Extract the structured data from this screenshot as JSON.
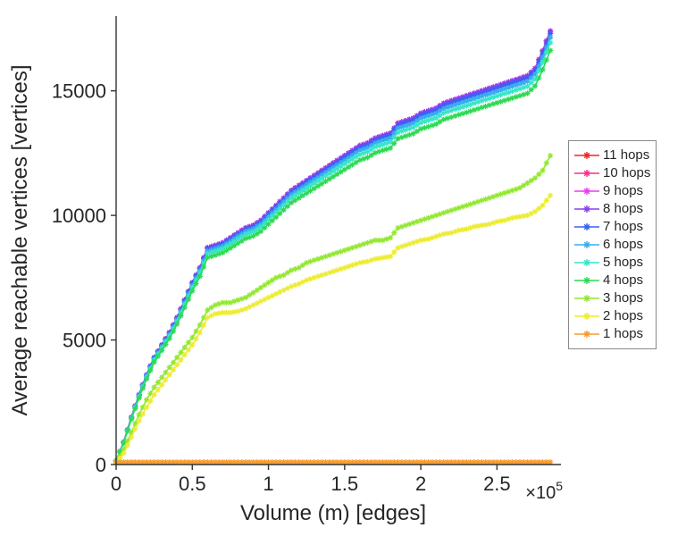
{
  "figure": {
    "background": "#ffffff",
    "axis_color": "#333333",
    "tick_label_color": "#262626"
  },
  "chart_data": {
    "type": "line",
    "title": "",
    "xlabel": "Volume (m) [edges]",
    "ylabel": "Average reachable vertices [vertices]",
    "x_axis_multiplier": {
      "base": "×10",
      "exponent": "5"
    },
    "x_unit_note": "x values are in units of 1e5 edges",
    "xlim": [
      0,
      2.92
    ],
    "ylim": [
      0,
      18000
    ],
    "xticks": [
      0,
      0.5,
      1,
      1.5,
      2,
      2.5
    ],
    "xtick_labels": [
      "0",
      "0.5",
      "1",
      "1.5",
      "2",
      "2.5"
    ],
    "yticks": [
      0,
      5000,
      10000,
      15000
    ],
    "ytick_labels": [
      "0",
      "5000",
      "10000",
      "15000"
    ],
    "grid": false,
    "marker": "asterisk",
    "legend_position": "right-outside",
    "x": [
      0.0,
      0.05,
      0.1,
      0.15,
      0.2,
      0.25,
      0.3,
      0.35,
      0.4,
      0.45,
      0.5,
      0.55,
      0.6,
      0.65,
      0.7,
      0.75,
      0.8,
      0.85,
      0.9,
      0.95,
      1.0,
      1.05,
      1.1,
      1.15,
      1.2,
      1.25,
      1.3,
      1.35,
      1.4,
      1.45,
      1.5,
      1.55,
      1.6,
      1.65,
      1.7,
      1.75,
      1.8,
      1.85,
      1.9,
      1.95,
      2.0,
      2.05,
      2.1,
      2.15,
      2.2,
      2.25,
      2.3,
      2.35,
      2.4,
      2.45,
      2.5,
      2.55,
      2.6,
      2.65,
      2.7,
      2.75,
      2.8,
      2.85
    ],
    "series": [
      {
        "name": "11 hops",
        "color": "#f0262d",
        "values": [
          150,
          900,
          1900,
          2800,
          3600,
          4300,
          4800,
          5300,
          5900,
          6600,
          7300,
          7900,
          8700,
          8800,
          8900,
          9100,
          9300,
          9500,
          9600,
          9800,
          10100,
          10400,
          10700,
          11000,
          11200,
          11400,
          11600,
          11800,
          12000,
          12200,
          12400,
          12600,
          12800,
          12900,
          13100,
          13200,
          13300,
          13700,
          13800,
          13900,
          14100,
          14200,
          14300,
          14500,
          14600,
          14700,
          14800,
          14900,
          15000,
          15100,
          15200,
          15300,
          15400,
          15500,
          15600,
          15900,
          16600,
          17400
        ]
      },
      {
        "name": "10 hops",
        "color": "#fb2e8c",
        "values": [
          150,
          900,
          1900,
          2800,
          3600,
          4300,
          4800,
          5300,
          5900,
          6600,
          7300,
          7900,
          8700,
          8800,
          8900,
          9100,
          9300,
          9500,
          9600,
          9800,
          10100,
          10400,
          10700,
          11000,
          11200,
          11400,
          11600,
          11800,
          12000,
          12200,
          12400,
          12600,
          12800,
          12900,
          13100,
          13200,
          13300,
          13700,
          13800,
          13900,
          14100,
          14200,
          14300,
          14500,
          14600,
          14700,
          14800,
          14900,
          15000,
          15100,
          15200,
          15300,
          15400,
          15500,
          15600,
          15900,
          16600,
          17400
        ]
      },
      {
        "name": "9 hops",
        "color": "#ee3cf0",
        "values": [
          150,
          900,
          1900,
          2800,
          3600,
          4300,
          4800,
          5300,
          5900,
          6600,
          7300,
          7900,
          8700,
          8800,
          8900,
          9100,
          9300,
          9500,
          9600,
          9800,
          10100,
          10400,
          10700,
          11000,
          11200,
          11400,
          11600,
          11800,
          12000,
          12200,
          12400,
          12600,
          12800,
          12900,
          13100,
          13200,
          13300,
          13700,
          13800,
          13900,
          14100,
          14200,
          14300,
          14500,
          14600,
          14700,
          14800,
          14900,
          15000,
          15100,
          15200,
          15300,
          15400,
          15500,
          15600,
          15900,
          16600,
          17400
        ]
      },
      {
        "name": "8 hops",
        "color": "#8c3ff0",
        "values": [
          150,
          900,
          1900,
          2800,
          3600,
          4300,
          4800,
          5300,
          5900,
          6600,
          7300,
          7900,
          8700,
          8800,
          8900,
          9100,
          9300,
          9500,
          9600,
          9800,
          10100,
          10400,
          10700,
          11000,
          11200,
          11400,
          11600,
          11800,
          12000,
          12200,
          12400,
          12600,
          12800,
          12900,
          13100,
          13200,
          13300,
          13700,
          13800,
          13900,
          14100,
          14200,
          14300,
          14500,
          14600,
          14700,
          14800,
          14900,
          15000,
          15100,
          15200,
          15300,
          15400,
          15500,
          15600,
          15900,
          16600,
          17400
        ]
      },
      {
        "name": "7 hops",
        "color": "#3a60f5",
        "values": [
          150,
          890,
          1890,
          2780,
          3580,
          4270,
          4770,
          5270,
          5860,
          6560,
          7260,
          7850,
          8650,
          8750,
          8850,
          9050,
          9240,
          9440,
          9540,
          9740,
          10040,
          10340,
          10640,
          10930,
          11130,
          11330,
          11530,
          11730,
          11930,
          12130,
          12330,
          12520,
          12720,
          12820,
          13020,
          13120,
          13220,
          13620,
          13720,
          13820,
          14020,
          14110,
          14210,
          14410,
          14510,
          14610,
          14710,
          14810,
          14910,
          15010,
          15110,
          15210,
          15310,
          15410,
          15510,
          15800,
          16500,
          17300
        ]
      },
      {
        "name": "6 hops",
        "color": "#38acf0",
        "values": [
          150,
          890,
          1870,
          2760,
          3550,
          4240,
          4730,
          5220,
          5810,
          6500,
          7190,
          7780,
          8570,
          8670,
          8770,
          8960,
          9160,
          9360,
          9460,
          9650,
          9950,
          10240,
          10540,
          10840,
          11030,
          11230,
          11430,
          11620,
          11820,
          12020,
          12210,
          12410,
          12610,
          12710,
          12900,
          13000,
          13100,
          13500,
          13590,
          13690,
          13890,
          13990,
          14090,
          14280,
          14380,
          14480,
          14580,
          14680,
          14780,
          14870,
          14970,
          15070,
          15170,
          15270,
          15370,
          15660,
          16350,
          17140
        ]
      },
      {
        "name": "5 hops",
        "color": "#35e6c8",
        "values": [
          150,
          880,
          1850,
          2720,
          3500,
          4180,
          4670,
          5160,
          5740,
          6420,
          7100,
          7690,
          8470,
          8560,
          8660,
          8850,
          9050,
          9240,
          9340,
          9540,
          9830,
          10120,
          10410,
          10700,
          10900,
          11090,
          11290,
          11480,
          11680,
          11870,
          12070,
          12260,
          12450,
          12550,
          12750,
          12840,
          12940,
          13330,
          13430,
          13530,
          13720,
          13820,
          13910,
          14110,
          14210,
          14300,
          14400,
          14500,
          14600,
          14690,
          14790,
          14890,
          14980,
          15080,
          15180,
          15470,
          16150,
          16930
        ]
      },
      {
        "name": "4 hops",
        "color": "#2ed955",
        "values": [
          140,
          860,
          1820,
          2670,
          3440,
          4110,
          4580,
          5060,
          5640,
          6300,
          6970,
          7550,
          8310,
          8400,
          8500,
          8690,
          8880,
          9070,
          9170,
          9360,
          9650,
          9930,
          10220,
          10510,
          10700,
          10890,
          11080,
          11270,
          11460,
          11650,
          11840,
          12030,
          12220,
          12320,
          12510,
          12610,
          12700,
          13080,
          13180,
          13280,
          13470,
          13560,
          13660,
          13850,
          13940,
          14040,
          14130,
          14230,
          14330,
          14420,
          14520,
          14610,
          14710,
          14800,
          14900,
          15190,
          15850,
          16620
        ]
      },
      {
        "name": "3 hops",
        "color": "#93e832",
        "values": [
          80,
          600,
          1300,
          2000,
          2600,
          3100,
          3500,
          3900,
          4300,
          4700,
          5100,
          5600,
          6200,
          6400,
          6500,
          6500,
          6600,
          6700,
          6900,
          7100,
          7300,
          7500,
          7600,
          7800,
          7900,
          8100,
          8200,
          8300,
          8400,
          8500,
          8600,
          8700,
          8800,
          8900,
          9000,
          9000,
          9100,
          9500,
          9600,
          9700,
          9800,
          9900,
          10000,
          10100,
          10200,
          10300,
          10400,
          10500,
          10600,
          10700,
          10800,
          10900,
          11000,
          11100,
          11300,
          11500,
          11800,
          12400
        ]
      },
      {
        "name": "2 hops",
        "color": "#ecec35",
        "values": [
          50,
          450,
          1100,
          1750,
          2300,
          2800,
          3200,
          3600,
          4000,
          4400,
          4800,
          5300,
          5900,
          6050,
          6100,
          6100,
          6150,
          6250,
          6400,
          6550,
          6700,
          6850,
          7000,
          7150,
          7250,
          7400,
          7500,
          7600,
          7700,
          7800,
          7900,
          8000,
          8100,
          8150,
          8250,
          8300,
          8350,
          8700,
          8800,
          8900,
          9000,
          9050,
          9150,
          9250,
          9300,
          9400,
          9450,
          9550,
          9600,
          9650,
          9750,
          9800,
          9900,
          9950,
          10000,
          10150,
          10400,
          10800
        ]
      },
      {
        "name": "1 hops",
        "color": "#f79b2d",
        "values": [
          100,
          100,
          100,
          100,
          100,
          100,
          100,
          100,
          100,
          100,
          100,
          100,
          100,
          100,
          100,
          100,
          100,
          100,
          100,
          100,
          100,
          100,
          100,
          100,
          100,
          100,
          100,
          100,
          100,
          100,
          100,
          100,
          100,
          100,
          100,
          100,
          100,
          100,
          100,
          100,
          100,
          100,
          100,
          100,
          100,
          100,
          100,
          100,
          100,
          100,
          100,
          100,
          100,
          100,
          100,
          100,
          100,
          100
        ]
      }
    ]
  }
}
